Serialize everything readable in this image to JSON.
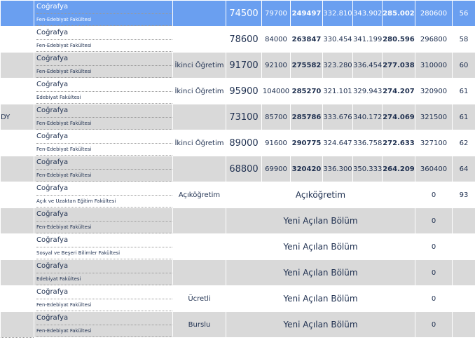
{
  "table": {
    "rows": [
      {
        "program": "Coğrafya",
        "faculty": "Fen-Edebiyat Fakültesi",
        "values": [
          "74500",
          "79700",
          "249497",
          "332.810",
          "343.902",
          "285.002",
          "280600",
          "56"
        ]
      },
      {
        "program": "Coğrafya",
        "faculty": "Fen-Edebiyat Fakültesi",
        "values": [
          "78600",
          "84000",
          "263847",
          "330.454",
          "341.199",
          "280.596",
          "296800",
          "58"
        ]
      },
      {
        "program": "Coğrafya",
        "faculty": "Fen-Edebiyat Fakültesi",
        "type": "İkinci Öğretim",
        "values": [
          "91700",
          "92100",
          "275582",
          "323.280",
          "336.454",
          "277.038",
          "310000",
          "60"
        ]
      },
      {
        "program": "Coğrafya",
        "faculty": "Edebiyat Fakültesi",
        "type": "İkinci Öğretim",
        "values": [
          "95900",
          "104000",
          "285270",
          "321.101",
          "329.943",
          "274.207",
          "320900",
          "61"
        ]
      },
      {
        "cut": "DY",
        "program": "Coğrafya",
        "faculty": "Fen-Edebiyat Fakültesi",
        "values": [
          "73100",
          "85700",
          "285786",
          "333.676",
          "340.172",
          "274.069",
          "321500",
          "61"
        ]
      },
      {
        "program": "Coğrafya",
        "faculty": "Fen-Edebiyat Fakültesi",
        "type": "İkinci Öğretim",
        "values": [
          "89000",
          "91600",
          "290775",
          "324.647",
          "336.758",
          "272.633",
          "327100",
          "62"
        ]
      },
      {
        "program": "Coğrafya",
        "faculty": "Fen-Edebiyat Fakültesi",
        "values": [
          "68800",
          "69900",
          "320420",
          "336.300",
          "350.333",
          "264.209",
          "360400",
          "64"
        ]
      },
      {
        "program": "Coğrafya",
        "faculty": "Açık ve Uzaktan Eğitim Fakültesi",
        "type": "Açıköğretim",
        "span": "Açıköğretim",
        "quota": "0",
        "last": "93"
      },
      {
        "program": "Coğrafya",
        "faculty": "Fen-Edebiyat Fakültesi",
        "span": "Yeni Açılan Bölüm",
        "quota": "0"
      },
      {
        "program": "Coğrafya",
        "faculty": "Sosyal ve Beşeri Bilimler Fakültesi",
        "span": "Yeni Açılan Bölüm",
        "quota": "0"
      },
      {
        "program": "Coğrafya",
        "faculty": "Edebiyat Fakültesi",
        "span": "Yeni Açılan Bölüm",
        "quota": "0"
      },
      {
        "program": "Coğrafya",
        "faculty": "Fen-Edebiyat Fakültesi",
        "type": "Ücretli",
        "span": "Yeni Açılan Bölüm",
        "quota": "0"
      },
      {
        "program": "Coğrafya",
        "faculty": "Fen-Edebiyat Fakültesi",
        "type": "Burslu",
        "span": "Yeni Açılan Bölüm",
        "quota": "0"
      }
    ]
  }
}
